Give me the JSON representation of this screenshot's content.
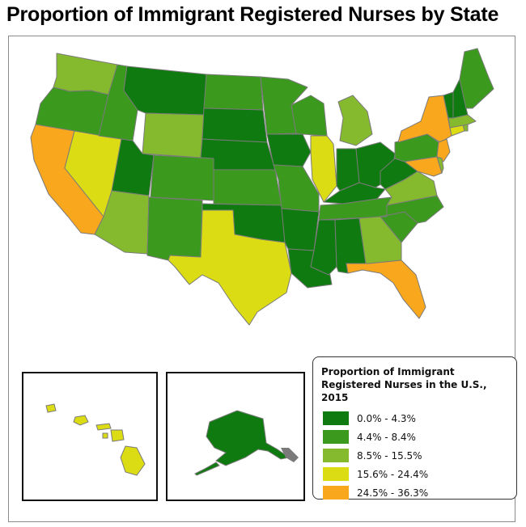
{
  "title": "Proportion of Immigrant Registered Nurses by State",
  "colors": {
    "c1": "#0f7a0f",
    "c2": "#3b9a1e",
    "c3": "#86ba2e",
    "c4": "#dcdc14",
    "c5": "#f9a71c",
    "stroke": "#7a7a7a"
  },
  "legend": {
    "title": "Proportion of Immigrant Registered Nurses in the U.S., 2015",
    "items": [
      {
        "label": "0.0% - 4.3%",
        "color": "#0f7a0f"
      },
      {
        "label": "4.4% - 8.4%",
        "color": "#3b9a1e"
      },
      {
        "label": "8.5% - 15.5%",
        "color": "#86ba2e"
      },
      {
        "label": "15.6% - 24.4%",
        "color": "#dcdc14"
      },
      {
        "label": "24.5% - 36.3%",
        "color": "#f9a71c"
      }
    ]
  },
  "states": [
    {
      "name": "WA",
      "cls": 3
    },
    {
      "name": "OR",
      "cls": 2
    },
    {
      "name": "CA",
      "cls": 5
    },
    {
      "name": "NV",
      "cls": 4
    },
    {
      "name": "ID",
      "cls": 2
    },
    {
      "name": "MT",
      "cls": 1
    },
    {
      "name": "WY",
      "cls": 3
    },
    {
      "name": "UT",
      "cls": 1
    },
    {
      "name": "AZ",
      "cls": 3
    },
    {
      "name": "CO",
      "cls": 2
    },
    {
      "name": "NM",
      "cls": 2
    },
    {
      "name": "ND",
      "cls": 2
    },
    {
      "name": "SD",
      "cls": 1
    },
    {
      "name": "NE",
      "cls": 1
    },
    {
      "name": "KS",
      "cls": 2
    },
    {
      "name": "OK",
      "cls": 1
    },
    {
      "name": "TX",
      "cls": 4
    },
    {
      "name": "MN",
      "cls": 2
    },
    {
      "name": "IA",
      "cls": 1
    },
    {
      "name": "MO",
      "cls": 2
    },
    {
      "name": "AR",
      "cls": 1
    },
    {
      "name": "LA",
      "cls": 1
    },
    {
      "name": "WI",
      "cls": 2
    },
    {
      "name": "IL",
      "cls": 4
    },
    {
      "name": "MI",
      "cls": 3
    },
    {
      "name": "IN",
      "cls": 1
    },
    {
      "name": "OH",
      "cls": 1
    },
    {
      "name": "KY",
      "cls": 1
    },
    {
      "name": "TN",
      "cls": 2
    },
    {
      "name": "MS",
      "cls": 1
    },
    {
      "name": "AL",
      "cls": 1
    },
    {
      "name": "GA",
      "cls": 3
    },
    {
      "name": "FL",
      "cls": 5
    },
    {
      "name": "SC",
      "cls": 2
    },
    {
      "name": "NC",
      "cls": 2
    },
    {
      "name": "VA",
      "cls": 3
    },
    {
      "name": "WV",
      "cls": 1
    },
    {
      "name": "PA",
      "cls": 2
    },
    {
      "name": "NY",
      "cls": 5
    },
    {
      "name": "NJ",
      "cls": 5
    },
    {
      "name": "MD",
      "cls": 5
    },
    {
      "name": "DE",
      "cls": 3
    },
    {
      "name": "CT",
      "cls": 4
    },
    {
      "name": "RI",
      "cls": 3
    },
    {
      "name": "MA",
      "cls": 3
    },
    {
      "name": "VT",
      "cls": 1
    },
    {
      "name": "NH",
      "cls": 1
    },
    {
      "name": "ME",
      "cls": 2
    },
    {
      "name": "AK",
      "cls": 1
    },
    {
      "name": "HI",
      "cls": 4
    }
  ]
}
